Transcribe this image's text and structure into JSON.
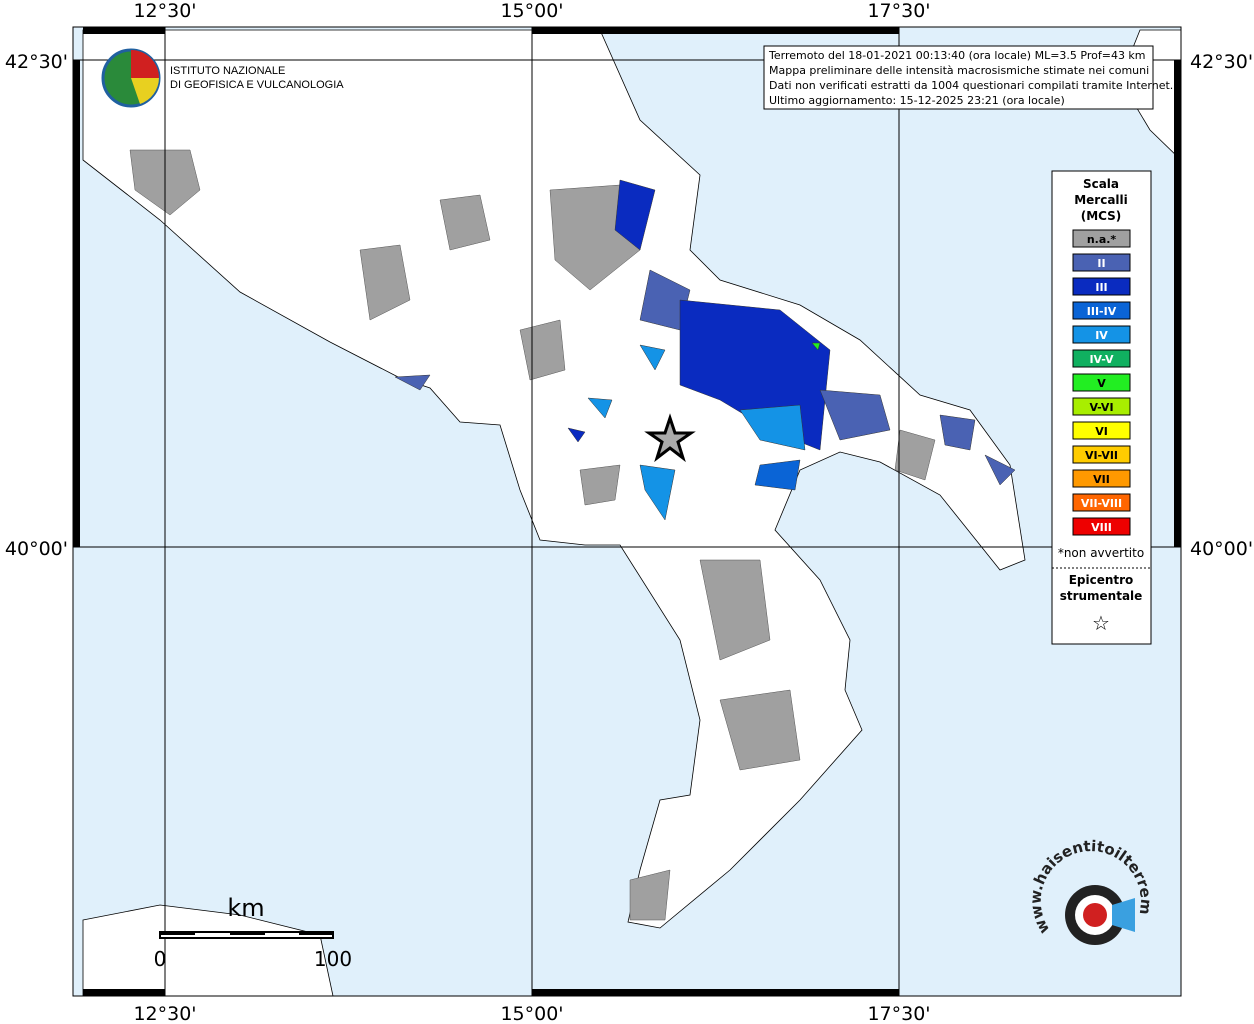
{
  "axes": {
    "lon_labels": [
      "12°30'",
      "15°00'",
      "17°30'"
    ],
    "lat_labels": [
      "42°30'",
      "40°00'"
    ]
  },
  "header": {
    "institute": [
      "ISTITUTO NAZIONALE",
      "DI GEOFISICA E VULCANOLOGIA"
    ],
    "info": [
      "Terremoto del 18-01-2021 00:13:40 (ora locale) ML=3.5 Prof=43 km",
      "Mappa preliminare delle intensità macrosismiche stimate nei comuni",
      "Dati non verificati estratti da 1004 questionari compilati tramite Internet.",
      "Ultimo aggiornamento: 15-12-2025 23:21 (ora locale)"
    ]
  },
  "legend": {
    "title": [
      "Scala",
      "Mercalli",
      "(MCS)"
    ],
    "items": [
      {
        "label": "n.a.*",
        "color": "#a0a0a0"
      },
      {
        "label": "II",
        "color": "#4a62b3"
      },
      {
        "label": "III",
        "color": "#0a2bc0"
      },
      {
        "label": "III-IV",
        "color": "#0a64d6"
      },
      {
        "label": "IV",
        "color": "#1493e6"
      },
      {
        "label": "IV-V",
        "color": "#10b060"
      },
      {
        "label": "V",
        "color": "#22ee22"
      },
      {
        "label": "V-VI",
        "color": "#a8ee00"
      },
      {
        "label": "VI",
        "color": "#ffff00"
      },
      {
        "label": "VI-VII",
        "color": "#ffcc00"
      },
      {
        "label": "VII",
        "color": "#ff9900"
      },
      {
        "label": "VII-VIII",
        "color": "#ff6600"
      },
      {
        "label": "VIII",
        "color": "#ee0000"
      }
    ],
    "footnote": "*non avvertito",
    "epicentre_title": [
      "Epicentro",
      "strumentale"
    ],
    "epicentre_symbol": "☆"
  },
  "scale_bar": {
    "unit": "km",
    "labels": [
      "0",
      "100"
    ]
  },
  "watermark": "www.haisentitoilterremoto.it"
}
